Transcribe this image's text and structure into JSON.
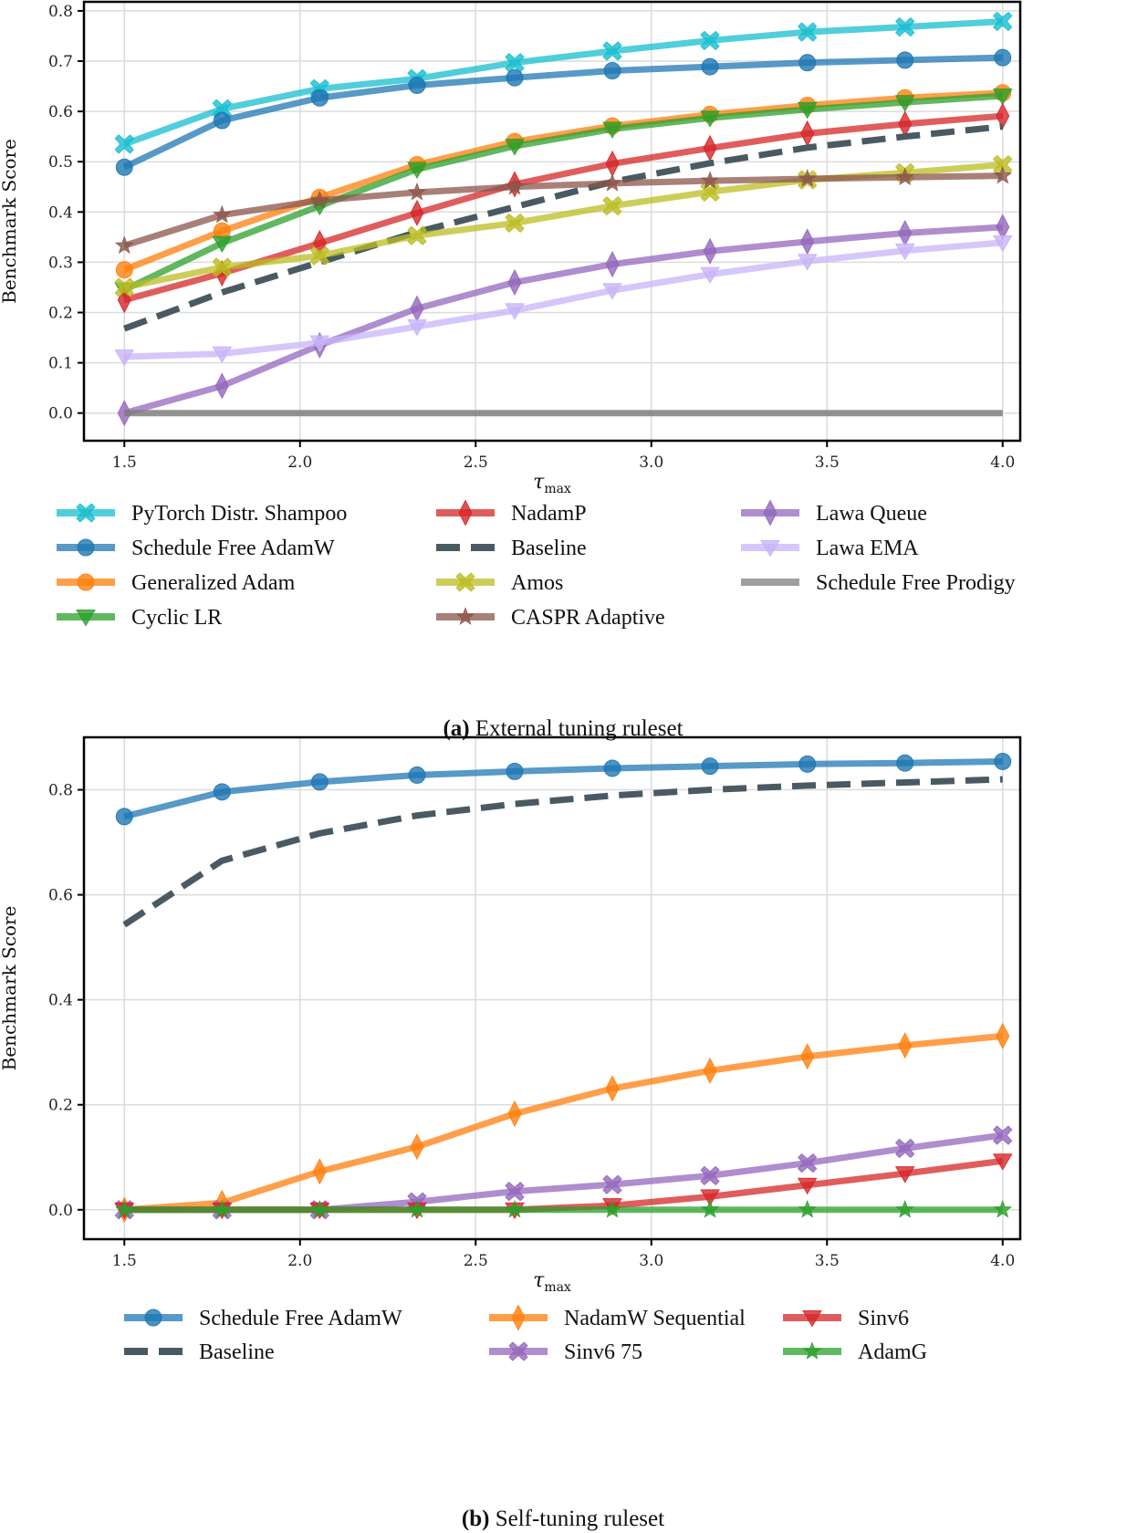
{
  "chart_data": [
    {
      "type": "line",
      "id": "a",
      "caption_label": "(a)",
      "caption_text": "External tuning ruleset",
      "xlabel": "τ",
      "xlabel_sub": "max",
      "ylabel": "Benchmark Score",
      "xlim": [
        1.385,
        4.05
      ],
      "ylim": [
        -0.055,
        0.818
      ],
      "xticks": [
        1.5,
        2.0,
        2.5,
        3.0,
        3.5,
        4.0
      ],
      "xtick_labels": [
        "1.5",
        "2.0",
        "2.5",
        "3.0",
        "3.5",
        "4.0"
      ],
      "yticks": [
        0.0,
        0.1,
        0.2,
        0.3,
        0.4,
        0.5,
        0.6,
        0.7,
        0.8
      ],
      "ytick_labels": [
        "0.0",
        "0.1",
        "0.2",
        "0.3",
        "0.4",
        "0.5",
        "0.6",
        "0.7",
        "0.8"
      ],
      "grid": true,
      "legend_placement": "bottom",
      "x": [
        1.5,
        1.778,
        2.056,
        2.333,
        2.611,
        2.889,
        3.167,
        3.444,
        3.722,
        4.0
      ],
      "series": [
        {
          "name": "PyTorch Distr. Shampoo",
          "color": "#17becf",
          "marker": "x-filled",
          "dashed": false,
          "values": [
            0.535,
            0.605,
            0.645,
            0.665,
            0.697,
            0.72,
            0.741,
            0.758,
            0.768,
            0.779
          ]
        },
        {
          "name": "Schedule Free AdamW",
          "color": "#1f77b4",
          "marker": "circle",
          "dashed": false,
          "values": [
            0.489,
            0.582,
            0.627,
            0.652,
            0.667,
            0.681,
            0.689,
            0.697,
            0.702,
            0.707
          ]
        },
        {
          "name": "Generalized Adam",
          "color": "#ff7f0e",
          "marker": "circle",
          "dashed": false,
          "values": [
            0.285,
            0.362,
            0.429,
            0.494,
            0.54,
            0.571,
            0.594,
            0.612,
            0.627,
            0.637
          ]
        },
        {
          "name": "Cyclic LR",
          "color": "#2ca02c",
          "marker": "triangle-down",
          "dashed": false,
          "values": [
            0.245,
            0.338,
            0.412,
            0.485,
            0.531,
            0.565,
            0.587,
            0.604,
            0.618,
            0.631
          ]
        },
        {
          "name": "NadamP",
          "color": "#d62728",
          "marker": "diamond",
          "dashed": false,
          "values": [
            0.225,
            0.278,
            0.338,
            0.398,
            0.455,
            0.496,
            0.527,
            0.556,
            0.575,
            0.591
          ]
        },
        {
          "name": "Baseline",
          "color": "#4a5a63",
          "marker": "none",
          "dashed": true,
          "values": [
            0.168,
            0.24,
            0.3,
            0.36,
            0.41,
            0.46,
            0.497,
            0.528,
            0.55,
            0.57
          ]
        },
        {
          "name": "Amos",
          "color": "#bcbd22",
          "marker": "x-filled",
          "dashed": false,
          "values": [
            0.25,
            0.29,
            0.313,
            0.353,
            0.378,
            0.412,
            0.44,
            0.464,
            0.478,
            0.494
          ]
        },
        {
          "name": "CASPR Adaptive",
          "color": "#8c564b",
          "marker": "star",
          "dashed": false,
          "values": [
            0.333,
            0.394,
            0.423,
            0.439,
            0.45,
            0.457,
            0.462,
            0.466,
            0.469,
            0.472
          ]
        },
        {
          "name": "Lawa Queue",
          "color": "#9467bd",
          "marker": "diamond",
          "dashed": false,
          "values": [
            0.0,
            0.054,
            0.135,
            0.208,
            0.26,
            0.296,
            0.322,
            0.341,
            0.358,
            0.37
          ]
        },
        {
          "name": "Lawa EMA",
          "color": "#c8b4f8",
          "marker": "triangle-down",
          "dashed": false,
          "values": [
            0.112,
            0.118,
            0.14,
            0.172,
            0.204,
            0.244,
            0.276,
            0.302,
            0.323,
            0.339
          ]
        },
        {
          "name": "Schedule Free Prodigy",
          "color": "#7f7f7f",
          "marker": "none",
          "dashed": false,
          "values": [
            0.0,
            0.0,
            0.0,
            0.0,
            0.0,
            0.0,
            0.0,
            0.0,
            0.0,
            0.0
          ]
        }
      ]
    },
    {
      "type": "line",
      "id": "b",
      "caption_label": "(b)",
      "caption_text": "Self-tuning ruleset",
      "xlabel": "τ",
      "xlabel_sub": "max",
      "ylabel": "Benchmark Score",
      "xlim": [
        1.385,
        4.05
      ],
      "ylim": [
        -0.056,
        0.9
      ],
      "xticks": [
        1.5,
        2.0,
        2.5,
        3.0,
        3.5,
        4.0
      ],
      "xtick_labels": [
        "1.5",
        "2.0",
        "2.5",
        "3.0",
        "3.5",
        "4.0"
      ],
      "yticks": [
        0.0,
        0.2,
        0.4,
        0.6,
        0.8
      ],
      "ytick_labels": [
        "0.0",
        "0.2",
        "0.4",
        "0.6",
        "0.8"
      ],
      "grid": true,
      "legend_placement": "bottom",
      "x": [
        1.5,
        1.778,
        2.056,
        2.333,
        2.611,
        2.889,
        3.167,
        3.444,
        3.722,
        4.0
      ],
      "series": [
        {
          "name": "Schedule Free AdamW",
          "color": "#1f77b4",
          "marker": "circle",
          "dashed": false,
          "values": [
            0.749,
            0.796,
            0.815,
            0.828,
            0.835,
            0.841,
            0.845,
            0.849,
            0.851,
            0.854
          ]
        },
        {
          "name": "Baseline",
          "color": "#4a5a63",
          "marker": "none",
          "dashed": true,
          "values": [
            0.543,
            0.665,
            0.717,
            0.751,
            0.773,
            0.789,
            0.8,
            0.808,
            0.814,
            0.82
          ]
        },
        {
          "name": "NadamW Sequential",
          "color": "#ff7f0e",
          "marker": "diamond",
          "dashed": false,
          "values": [
            0.0,
            0.013,
            0.073,
            0.12,
            0.183,
            0.231,
            0.265,
            0.292,
            0.313,
            0.331
          ]
        },
        {
          "name": "Sinv6 75",
          "color": "#9467bd",
          "marker": "x-filled",
          "dashed": false,
          "values": [
            0.0,
            0.0,
            0.0,
            0.015,
            0.035,
            0.048,
            0.065,
            0.089,
            0.117,
            0.142
          ]
        },
        {
          "name": "Sinv6",
          "color": "#d62728",
          "marker": "triangle-down",
          "dashed": false,
          "values": [
            0.0,
            0.0,
            0.0,
            0.0,
            0.0,
            0.008,
            0.025,
            0.047,
            0.069,
            0.093
          ]
        },
        {
          "name": "AdamG",
          "color": "#2ca02c",
          "marker": "star",
          "dashed": false,
          "values": [
            0.0,
            0.0,
            0.0,
            0.0,
            0.0,
            0.0,
            0.0,
            0.0,
            0.0,
            0.0
          ]
        }
      ],
      "legend_order": [
        "Schedule Free AdamW",
        "NadamW Sequential",
        "Sinv6",
        "Baseline",
        "Sinv6 75",
        "AdamG"
      ]
    }
  ]
}
